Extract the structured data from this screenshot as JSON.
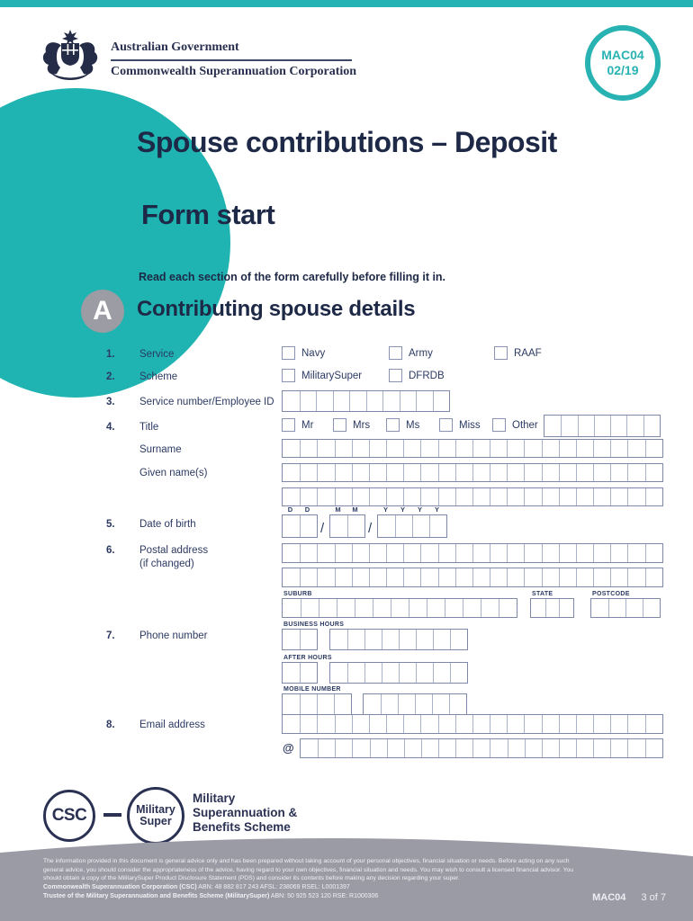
{
  "badge": {
    "line1": "MAC04",
    "line2": "02/19"
  },
  "header": {
    "government": "Australian Government",
    "organisation": "Commonwealth Superannuation Corporation"
  },
  "title": "Spouse contributions – Deposit",
  "subtitle": "Form start",
  "instruction": "Read each section of the form carefully before filling it in.",
  "section": {
    "letter": "A",
    "heading": "Contributing spouse details"
  },
  "fields": {
    "service": {
      "num": "1.",
      "label": "Service",
      "options": [
        "Navy",
        "Army",
        "RAAF"
      ]
    },
    "scheme": {
      "num": "2.",
      "label": "Scheme",
      "options": [
        "MilitarySuper",
        "DFRDB"
      ]
    },
    "service_number": {
      "num": "3.",
      "label": "Service number/Employee ID",
      "cells": 10
    },
    "title_field": {
      "num": "4.",
      "label": "Title",
      "options": [
        "Mr",
        "Mrs",
        "Ms",
        "Miss",
        "Other"
      ],
      "other_cells": 7
    },
    "surname": {
      "label": "Surname",
      "cells": 22
    },
    "given_names": {
      "label": "Given name(s)",
      "cells": 22,
      "cells2": 22
    },
    "dob": {
      "num": "5.",
      "label": "Date of birth",
      "format": [
        "D",
        "D",
        "M",
        "M",
        "Y",
        "Y",
        "Y",
        "Y"
      ],
      "separator": "/",
      "dd_cells": 2,
      "mm_cells": 2,
      "yyyy_cells": 4
    },
    "postal": {
      "num": "6.",
      "label": "Postal address",
      "label2": "(if changed)",
      "cells": 22,
      "cells2": 22,
      "suburb_label": "SUBURB",
      "suburb_cells": 13,
      "state_label": "STATE",
      "state_cells": 3,
      "postcode_label": "POSTCODE",
      "postcode_cells": 4
    },
    "phone": {
      "num": "7.",
      "label": "Phone number",
      "business_label": "BUSINESS HOURS",
      "business_area_cells": 2,
      "business_cells": 8,
      "after_label": "AFTER HOURS",
      "after_area_cells": 2,
      "after_cells": 8,
      "mobile_label": "MOBILE NUMBER",
      "mobile_a_cells": 4,
      "mobile_b_cells": 6
    },
    "email": {
      "num": "8.",
      "label": "Email address",
      "cells": 22,
      "at": "@",
      "cells2": 21
    }
  },
  "logos": {
    "csc": "CSC",
    "military_line1": "Military",
    "military_line2": "Super",
    "scheme_name": "Military\nSuperannuation &\nBenefits Scheme"
  },
  "footer": {
    "line1": "The information provided in this document is general advice only and has been prepared without taking account of your personal objectives, financial situation or needs. Before acting on any such",
    "line2": "general advice, you should consider the appropriateness of the advice, having regard to your own objectives, financial situation and needs. You may wish to consult a licensed financial advisor. You",
    "line3": "should obtain a copy of the MilitarySuper Product Disclosure Statement (PDS) and consider its contents before making any decision regarding your super.",
    "line4_bold": "Commonwealth Superannuation Corporation (CSC)",
    "line4_rest": " ABN: 48 882 817 243 AFSL: 238069 RSEL: L0001397",
    "line5_bold": "Trustee of the Military Superannuation and Benefits Scheme (MilitarySuper)",
    "line5_rest": " ABN: 50 925 523 120 RSE: R1000306",
    "code": "MAC04",
    "page": "3 of 7"
  },
  "colors": {
    "teal": "#1fb3b1",
    "navy": "#1d2946",
    "footer_gray": "#9b9ba6",
    "section_gray": "#9c9ca4"
  }
}
